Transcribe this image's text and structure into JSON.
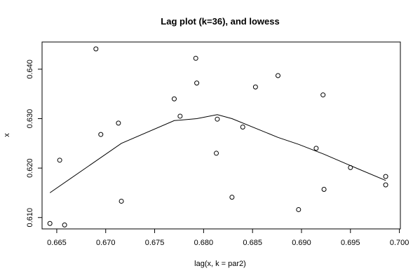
{
  "chart_data": {
    "type": "scatter",
    "title": "Lag plot (k=36), and lowess",
    "xlabel": "lag(x, k = par2)",
    "ylabel": "x",
    "xlim": [
      0.6635,
      0.7001
    ],
    "ylim": [
      0.6077,
      0.6455
    ],
    "x_ticks": [
      0.665,
      0.67,
      0.675,
      0.68,
      0.685,
      0.69,
      0.695,
      0.7
    ],
    "x_tick_labels": [
      "0.665",
      "0.670",
      "0.675",
      "0.680",
      "0.685",
      "0.690",
      "0.695",
      "0.700"
    ],
    "y_ticks": [
      0.61,
      0.62,
      0.63,
      0.64
    ],
    "y_tick_labels": [
      "0.610",
      "0.620",
      "0.630",
      "0.640"
    ],
    "grid": false,
    "points": [
      {
        "x": 0.6643,
        "y": 0.6088
      },
      {
        "x": 0.6653,
        "y": 0.6216
      },
      {
        "x": 0.6658,
        "y": 0.6085
      },
      {
        "x": 0.669,
        "y": 0.6441
      },
      {
        "x": 0.6695,
        "y": 0.6268
      },
      {
        "x": 0.6713,
        "y": 0.6291
      },
      {
        "x": 0.6716,
        "y": 0.6133
      },
      {
        "x": 0.677,
        "y": 0.634
      },
      {
        "x": 0.6776,
        "y": 0.6305
      },
      {
        "x": 0.6792,
        "y": 0.6422
      },
      {
        "x": 0.6793,
        "y": 0.6372
      },
      {
        "x": 0.6813,
        "y": 0.623
      },
      {
        "x": 0.6814,
        "y": 0.6299
      },
      {
        "x": 0.6829,
        "y": 0.6141
      },
      {
        "x": 0.684,
        "y": 0.6283
      },
      {
        "x": 0.6853,
        "y": 0.6364
      },
      {
        "x": 0.6876,
        "y": 0.6387
      },
      {
        "x": 0.6897,
        "y": 0.6116
      },
      {
        "x": 0.6915,
        "y": 0.624
      },
      {
        "x": 0.6922,
        "y": 0.6348
      },
      {
        "x": 0.6923,
        "y": 0.6157
      },
      {
        "x": 0.695,
        "y": 0.6201
      },
      {
        "x": 0.6986,
        "y": 0.6183
      },
      {
        "x": 0.6986,
        "y": 0.6166
      }
    ],
    "lowess": [
      {
        "x": 0.6643,
        "y": 0.615
      },
      {
        "x": 0.6716,
        "y": 0.625
      },
      {
        "x": 0.677,
        "y": 0.6296
      },
      {
        "x": 0.6793,
        "y": 0.63
      },
      {
        "x": 0.6814,
        "y": 0.6308
      },
      {
        "x": 0.6829,
        "y": 0.63
      },
      {
        "x": 0.6876,
        "y": 0.6262
      },
      {
        "x": 0.6897,
        "y": 0.6248
      },
      {
        "x": 0.6923,
        "y": 0.6228
      },
      {
        "x": 0.695,
        "y": 0.6205
      },
      {
        "x": 0.6986,
        "y": 0.6175
      }
    ]
  }
}
